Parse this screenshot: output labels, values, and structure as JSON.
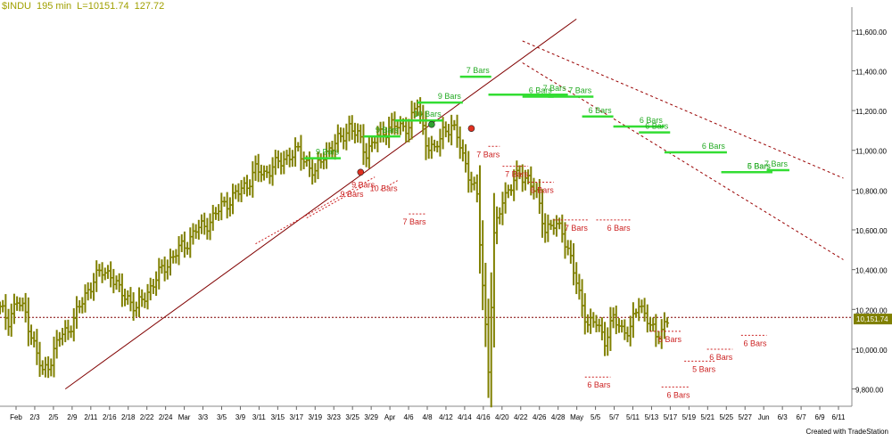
{
  "header": {
    "symbol": "$INDU",
    "interval": "195 min",
    "last": "L=10151.74",
    "change": "127.72"
  },
  "credit": "Created with TradeStation",
  "colors": {
    "bar": "#808000",
    "resistance_bars": "#33dd33",
    "resistance_label": "#22aa22",
    "support_bars": "#cc2222",
    "trendline": "#800000",
    "channel": "#990000",
    "last_box": "#808000"
  },
  "chart_data": {
    "type": "bar",
    "y_axis": {
      "min": 9740,
      "max": 11720,
      "ticks": [
        9800,
        10000,
        10200,
        10400,
        10600,
        10800,
        11000,
        11200,
        11400,
        11600
      ],
      "tick_labels": [
        "9,800.00",
        "10,000.00",
        "10,200.00",
        "10,400.00",
        "10,600.00",
        "10,800.00",
        "11,000.00",
        "11,200.00",
        "11,400.00",
        "11,600.00"
      ],
      "last_price": 10151.74,
      "last_label": "10,151.74",
      "position": "right"
    },
    "x_labels": [
      "Feb",
      "2/3",
      "2/5",
      "2/9",
      "2/11",
      "2/16",
      "2/18",
      "2/22",
      "2/24",
      "Mar",
      "3/3",
      "3/5",
      "3/9",
      "3/11",
      "3/15",
      "3/17",
      "3/19",
      "3/23",
      "3/25",
      "3/29",
      "Apr",
      "4/6",
      "4/8",
      "4/12",
      "4/14",
      "4/16",
      "4/20",
      "4/22",
      "4/26",
      "4/28",
      "May",
      "5/5",
      "5/7",
      "5/11",
      "5/13",
      "5/17",
      "5/19",
      "5/21",
      "5/25",
      "5/27",
      "Jun",
      "6/3",
      "6/7",
      "6/9",
      "6/11"
    ],
    "price_points": [
      [
        0,
        10200
      ],
      [
        3,
        10150
      ],
      [
        6,
        10240
      ],
      [
        9,
        10180
      ],
      [
        12,
        10020
      ],
      [
        15,
        9880
      ],
      [
        18,
        9950
      ],
      [
        21,
        10060
      ],
      [
        24,
        10100
      ],
      [
        27,
        10180
      ],
      [
        30,
        10270
      ],
      [
        33,
        10350
      ],
      [
        36,
        10390
      ],
      [
        39,
        10380
      ],
      [
        42,
        10290
      ],
      [
        45,
        10260
      ],
      [
        48,
        10200
      ],
      [
        51,
        10270
      ],
      [
        54,
        10330
      ],
      [
        57,
        10400
      ],
      [
        60,
        10450
      ],
      [
        63,
        10500
      ],
      [
        66,
        10540
      ],
      [
        69,
        10600
      ],
      [
        72,
        10620
      ],
      [
        75,
        10660
      ],
      [
        78,
        10720
      ],
      [
        81,
        10750
      ],
      [
        84,
        10790
      ],
      [
        87,
        10830
      ],
      [
        90,
        10900
      ],
      [
        93,
        10880
      ],
      [
        96,
        10920
      ],
      [
        99,
        10940
      ],
      [
        102,
        10980
      ],
      [
        105,
        10990
      ],
      [
        108,
        10940
      ],
      [
        111,
        10880
      ],
      [
        114,
        10980
      ],
      [
        117,
        11020
      ],
      [
        120,
        11060
      ],
      [
        123,
        11120
      ],
      [
        126,
        11070
      ],
      [
        129,
        10990
      ],
      [
        132,
        11050
      ],
      [
        135,
        11090
      ],
      [
        138,
        11130
      ],
      [
        141,
        11110
      ],
      [
        144,
        11130
      ],
      [
        147,
        11230
      ],
      [
        150,
        11050
      ],
      [
        153,
        10990
      ],
      [
        156,
        11100
      ],
      [
        159,
        11120
      ],
      [
        162,
        11030
      ],
      [
        165,
        10880
      ],
      [
        168,
        10760
      ],
      [
        170,
        10330
      ],
      [
        172,
        9900
      ],
      [
        174,
        10560
      ],
      [
        177,
        10760
      ],
      [
        180,
        10820
      ],
      [
        183,
        10880
      ],
      [
        186,
        10860
      ],
      [
        189,
        10770
      ],
      [
        192,
        10610
      ],
      [
        195,
        10620
      ],
      [
        198,
        10600
      ],
      [
        201,
        10450
      ],
      [
        204,
        10270
      ],
      [
        207,
        10130
      ],
      [
        210,
        10130
      ],
      [
        213,
        10050
      ],
      [
        216,
        10150
      ],
      [
        219,
        10100
      ],
      [
        222,
        10100
      ],
      [
        225,
        10230
      ],
      [
        228,
        10160
      ],
      [
        231,
        10050
      ],
      [
        234,
        10130
      ],
      [
        235,
        10152
      ]
    ],
    "trendline": {
      "from": [
        23,
        9800
      ],
      "to": [
        203,
        11660
      ]
    },
    "channel_lines": [
      {
        "from": [
          184,
          11550
        ],
        "to": [
          297,
          10860
        ]
      },
      {
        "from": [
          184,
          11440
        ],
        "to": [
          297,
          10450
        ]
      }
    ],
    "last_line": 10160,
    "resistance_steps": [
      {
        "y": 10960,
        "x1": 107,
        "x2": 120,
        "label": "9 Bars"
      },
      {
        "y": 11070,
        "x1": 128,
        "x2": 141,
        "label": "9 Bars"
      },
      {
        "y": 11150,
        "x1": 139,
        "x2": 156,
        "label": "10 Bars"
      },
      {
        "y": 11240,
        "x1": 147,
        "x2": 163,
        "label": "9 Bars"
      },
      {
        "y": 11370,
        "x1": 162,
        "x2": 173,
        "label": "7 Bars"
      },
      {
        "y": 11280,
        "x1": 172,
        "x2": 200,
        "label": "7 Bars"
      },
      {
        "y": 11270,
        "x1": 184,
        "x2": 195,
        "label": "6 Bars"
      },
      {
        "y": 11270,
        "x1": 193,
        "x2": 209,
        "label": "7 Bars"
      },
      {
        "y": 11170,
        "x1": 205,
        "x2": 216,
        "label": "6 Bars"
      },
      {
        "y": 11120,
        "x1": 216,
        "x2": 234,
        "label": "6 Bars"
      },
      {
        "y": 11090,
        "x1": 225,
        "x2": 236,
        "label": "6 Bars"
      },
      {
        "y": 10990,
        "x1": 234,
        "x2": 256,
        "label": "6 Bars"
      },
      {
        "y": 10890,
        "x1": 254,
        "x2": 272,
        "label": "5 Bars"
      },
      {
        "y": 10890,
        "x1": 261,
        "x2": 272,
        "label": "6 Bars"
      },
      {
        "y": 10900,
        "x1": 270,
        "x2": 278,
        "label": "7 Bars"
      }
    ],
    "support_steps": [
      {
        "y": 10530,
        "x1": 90,
        "x2": 132,
        "label": "9 Bars",
        "slope": 1
      },
      {
        "y": 10660,
        "x1": 108,
        "x2": 128,
        "label": "9 Bars",
        "slope": 1
      },
      {
        "y": 10800,
        "x1": 134,
        "x2": 140,
        "label": "10 Bars",
        "slope": 1
      },
      {
        "y": 10680,
        "x1": 144,
        "x2": 150,
        "label": "7 Bars",
        "slope": 0
      },
      {
        "y": 11020,
        "x1": 172,
        "x2": 176,
        "label": "7 Bars",
        "slope": 0
      },
      {
        "y": 10920,
        "x1": 177,
        "x2": 186,
        "label": "7 Bars",
        "slope": 0
      },
      {
        "y": 10840,
        "x1": 186,
        "x2": 195,
        "label": "6 Bars",
        "slope": 0
      },
      {
        "y": 10650,
        "x1": 195,
        "x2": 207,
        "label": "7 Bars",
        "slope": 0
      },
      {
        "y": 10650,
        "x1": 210,
        "x2": 222,
        "label": "6 Bars",
        "slope": 0
      },
      {
        "y": 9860,
        "x1": 206,
        "x2": 215,
        "label": "6 Bars",
        "slope": 0
      },
      {
        "y": 10090,
        "x1": 229,
        "x2": 240,
        "label": "6 Bars",
        "slope": 0
      },
      {
        "y": 9810,
        "x1": 233,
        "x2": 243,
        "label": "6 Bars",
        "slope": 0
      },
      {
        "y": 9940,
        "x1": 241,
        "x2": 252,
        "label": "5 Bars",
        "slope": 0
      },
      {
        "y": 10000,
        "x1": 249,
        "x2": 258,
        "label": "6 Bars",
        "slope": 0
      },
      {
        "y": 10070,
        "x1": 261,
        "x2": 270,
        "label": "6 Bars",
        "slope": 0
      }
    ],
    "markers": [
      {
        "x": 127,
        "y": 10890,
        "color": "#e03020"
      },
      {
        "x": 152,
        "y": 11130,
        "color": "#30a030"
      },
      {
        "x": 166,
        "y": 11110,
        "color": "#e03020"
      }
    ]
  }
}
